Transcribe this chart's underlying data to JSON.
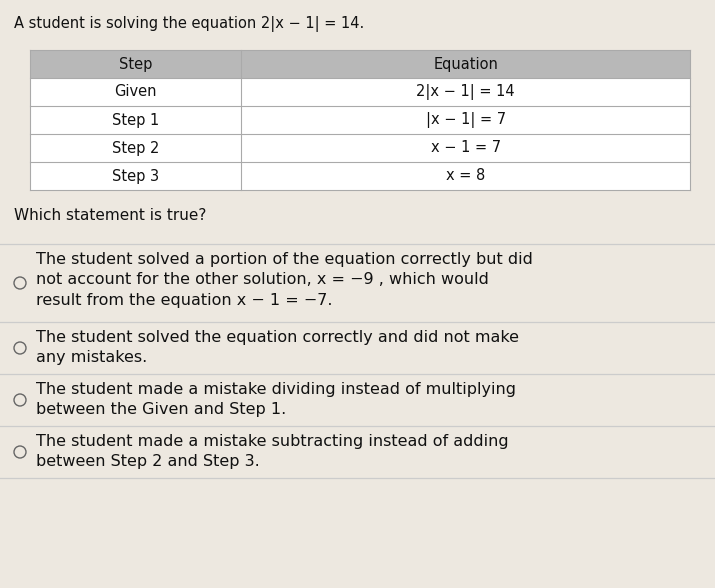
{
  "title": "A student is solving the equation 2|x − 1| = 14.",
  "table_headers": [
    "Step",
    "Equation"
  ],
  "table_rows": [
    [
      "Given",
      "2|x − 1| = 14"
    ],
    [
      "Step 1",
      "|x − 1| = 7"
    ],
    [
      "Step 2",
      "x − 1 = 7"
    ],
    [
      "Step 3",
      "x = 8"
    ]
  ],
  "question": "Which statement is true?",
  "options": [
    "The student solved a portion of the equation correctly but did\nnot account for the other solution, x = −9 , which would\nresult from the equation x − 1 = −7.",
    "The student solved the equation correctly and did not make\nany mistakes.",
    "The student made a mistake dividing instead of multiplying\nbetween the Given and Step 1.",
    "The student made a mistake subtracting instead of adding\nbetween Step 2 and Step 3."
  ],
  "bg_color": "#ede8e0",
  "table_header_bg": "#b8b8b8",
  "table_row_bg": "#ffffff",
  "table_border_color": "#aaaaaa",
  "title_fontsize": 10.5,
  "table_fontsize": 10.5,
  "question_fontsize": 11,
  "option_fontsize": 11.5
}
